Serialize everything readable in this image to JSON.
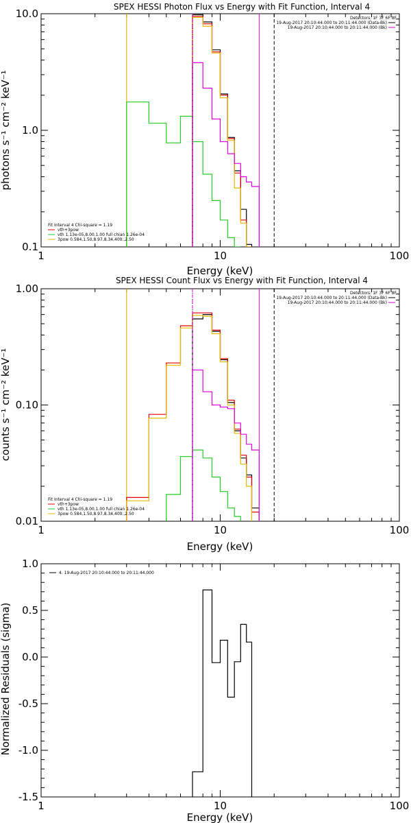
{
  "chart_data": [
    {
      "type": "line",
      "title": "SPEX HESSI Photon Flux vs Energy with Fit Function, Interval 4",
      "xlabel": "Energy (keV)",
      "ylabel": "photons s⁻¹ cm⁻² keV⁻¹",
      "x_scale": "log",
      "y_scale": "log",
      "xlim": [
        1,
        100
      ],
      "ylim": [
        0.1,
        10
      ],
      "x_ticks": [
        {
          "v": 1,
          "label": "1"
        },
        {
          "v": 10,
          "label": "10"
        },
        {
          "v": 100,
          "label": "100"
        }
      ],
      "y_ticks": [
        {
          "v": 0.1,
          "label": "0.1"
        },
        {
          "v": 1,
          "label": "1.0"
        },
        {
          "v": 10,
          "label": "10.0"
        }
      ],
      "edges": [
        3,
        4,
        5,
        6,
        7,
        8,
        9,
        10,
        11,
        12,
        13,
        14,
        15,
        16.5
      ],
      "series": [
        {
          "color": "#000000",
          "values": [
            null,
            null,
            null,
            null,
            9.8,
            8.5,
            4.9,
            2.05,
            0.87,
            0.45,
            0.21,
            0.105,
            null
          ]
        },
        {
          "color": "#dd0000",
          "values": [
            null,
            null,
            null,
            null,
            9.5,
            8.2,
            4.7,
            2.0,
            0.85,
            0.43,
            0.17,
            0.1,
            null
          ]
        },
        {
          "color": "#22cc22",
          "values": [
            1.75,
            1.15,
            0.78,
            1.32,
            0.8,
            0.42,
            0.25,
            0.17,
            0.12,
            0.1,
            null,
            null,
            null
          ]
        },
        {
          "color": "#e6b800",
          "values": [
            null,
            null,
            null,
            null,
            9.3,
            7.8,
            4.6,
            1.9,
            0.82,
            0.32,
            0.16,
            0.09,
            null
          ]
        },
        {
          "color": "#e000e0",
          "values": [
            null,
            null,
            null,
            null,
            3.8,
            2.3,
            1.25,
            0.8,
            0.63,
            0.52,
            0.4,
            0.36,
            0.33
          ]
        }
      ],
      "vlines": [
        {
          "x": 7,
          "style": "dotted",
          "color": "#000000"
        },
        {
          "x": 7,
          "style": "dashed",
          "color": "#e000e0"
        },
        {
          "x": 16.5,
          "style": "solid",
          "color": "#e000e0"
        },
        {
          "x": 20,
          "style": "dashed",
          "color": "#000000"
        }
      ],
      "yellow_edge_x": 3,
      "legend_top_right": {
        "header": "Detectors: 1F 3F 6F 8F",
        "items": [
          {
            "text": "19-Aug-2017 20:10:44.000 to 20:11:44.000 (Data-Bk)",
            "color": "#000000"
          },
          {
            "text": "19-Aug-2017 20:10:44.000 to 20:11:44.000 (Bk)",
            "color": "#e000e0"
          }
        ]
      },
      "legend_bottom_left": {
        "header": "Fit Interval 4   Chi-square = 1.19",
        "items": [
          {
            "text": "vth+3pow",
            "color": "#dd0000"
          },
          {
            "text": "vth 1.13e-05,8.00,1.00  full chian 1.26e-04",
            "color": "#22cc22"
          },
          {
            "text": "3pow 0.584,1.50,8.97,8.34,400.,2.50",
            "color": "#e6b800"
          }
        ]
      }
    },
    {
      "type": "line",
      "title": "SPEX HESSI Count Flux vs Energy with Fit Function, Interval 4",
      "xlabel": "Energy (keV)",
      "ylabel": "counts s⁻¹ cm⁻² keV⁻¹",
      "x_scale": "log",
      "y_scale": "log",
      "xlim": [
        1,
        100
      ],
      "ylim": [
        0.01,
        1
      ],
      "x_ticks": [
        {
          "v": 1,
          "label": "1"
        },
        {
          "v": 10,
          "label": "10"
        },
        {
          "v": 100,
          "label": "100"
        }
      ],
      "y_ticks": [
        {
          "v": 0.01,
          "label": "0.01"
        },
        {
          "v": 0.1,
          "label": "0.10"
        },
        {
          "v": 1,
          "label": "1.00"
        }
      ],
      "edges": [
        3,
        4,
        5,
        6,
        7,
        8,
        9,
        10,
        11,
        12,
        13,
        14,
        15,
        16.5
      ],
      "series": [
        {
          "color": "#000000",
          "values": [
            null,
            null,
            null,
            null,
            0.55,
            0.6,
            0.43,
            0.245,
            0.105,
            0.06,
            0.035,
            0.025,
            0.013
          ]
        },
        {
          "color": "#dd0000",
          "values": [
            0.016,
            0.083,
            0.23,
            0.48,
            0.62,
            0.62,
            0.44,
            0.25,
            0.11,
            0.062,
            0.037,
            0.024,
            0.012
          ]
        },
        {
          "color": "#22cc22",
          "values": [
            null,
            null,
            0.017,
            0.036,
            0.041,
            0.035,
            0.024,
            0.018,
            0.013,
            0.011,
            null,
            null,
            null
          ]
        },
        {
          "color": "#e6b800",
          "values": [
            0.015,
            0.077,
            0.22,
            0.46,
            0.59,
            0.58,
            0.41,
            0.235,
            0.1,
            0.057,
            0.031,
            0.02,
            null
          ]
        },
        {
          "color": "#e000e0",
          "values": [
            null,
            null,
            null,
            null,
            0.2,
            0.13,
            0.1,
            0.096,
            0.093,
            0.07,
            0.056,
            0.046,
            0.041
          ]
        }
      ],
      "vlines": [
        {
          "x": 7,
          "style": "dotted",
          "color": "#000000"
        },
        {
          "x": 7,
          "style": "dashed",
          "color": "#e000e0"
        },
        {
          "x": 16.5,
          "style": "solid",
          "color": "#e000e0"
        },
        {
          "x": 20,
          "style": "dashed",
          "color": "#000000"
        }
      ],
      "yellow_edge_x": 3,
      "legend_top_right": {
        "header": "Detectors: 1F 3F 6F 8F",
        "items": [
          {
            "text": "19-Aug-2017 20:10:44.000 to 20:11:44.000 (Data-Bk)",
            "color": "#000000"
          },
          {
            "text": "19-Aug-2017 20:10:44.000 to 20:11:44.000 (Bk)",
            "color": "#e000e0"
          }
        ]
      },
      "legend_bottom_left": {
        "header": "Fit Interval 4   Chi-square = 1.19",
        "items": [
          {
            "text": "vth+3pow",
            "color": "#dd0000"
          },
          {
            "text": "vth 1.13e-05,8.00,1.00  full chian 1.26e-04",
            "color": "#22cc22"
          },
          {
            "text": "3pow 0.584,1.50,8.97,8.34,400.,2.50",
            "color": "#e6b800"
          }
        ]
      }
    },
    {
      "type": "line",
      "title": "",
      "xlabel": "Energy (keV)",
      "ylabel": "Normalized Residuals (sigma)",
      "x_scale": "log",
      "y_scale": "linear",
      "xlim": [
        1,
        100
      ],
      "ylim": [
        -1.5,
        1.0
      ],
      "x_ticks": [
        {
          "v": 1,
          "label": "1"
        },
        {
          "v": 10,
          "label": "10"
        },
        {
          "v": 100,
          "label": "100"
        }
      ],
      "y_ticks": [
        {
          "v": 1.0,
          "label": "1.0"
        },
        {
          "v": 0.5,
          "label": "0.5"
        },
        {
          "v": 0.0,
          "label": "0.0"
        },
        {
          "v": -0.5,
          "label": "-0.5"
        },
        {
          "v": -1.0,
          "label": "-1.0"
        },
        {
          "v": -1.5,
          "label": "-1.5"
        }
      ],
      "edges": [
        7,
        8,
        9,
        10,
        11,
        12,
        13,
        14,
        15,
        16.5
      ],
      "series": [
        {
          "color": "#000000",
          "values": [
            -1.23,
            0.72,
            -0.06,
            0.18,
            -0.43,
            -0.05,
            0.35,
            0.16,
            null
          ]
        }
      ],
      "vlines": [],
      "legend_top_left": {
        "items": [
          {
            "text": "4. 19-Aug-2017 20:10:44.000 to 20:11:44.000",
            "color": "#000000"
          }
        ]
      }
    }
  ]
}
